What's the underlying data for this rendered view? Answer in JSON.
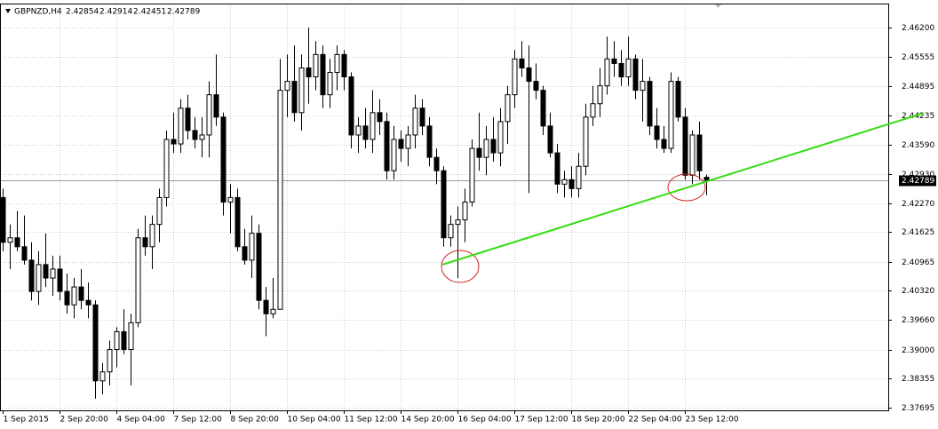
{
  "chart_data": {
    "type": "candlestick",
    "header": {
      "symbol": "GBPNZD,H4"
    },
    "open": [
      2.424,
      2.414,
      2.415,
      2.413,
      2.41,
      2.403,
      2.409,
      2.406,
      2.408,
      2.403,
      2.4,
      2.404,
      2.401,
      2.4,
      2.383,
      2.385,
      2.39,
      2.394,
      2.39,
      2.396,
      2.415,
      2.413,
      2.418,
      2.424,
      2.437,
      2.436,
      2.444,
      2.439,
      2.437,
      2.438,
      2.447,
      2.442,
      2.423,
      2.424,
      2.413,
      2.41,
      2.416,
      2.401,
      2.398,
      2.399,
      2.448,
      2.45,
      2.443,
      2.453,
      2.451,
      2.456,
      2.447,
      2.452,
      2.456,
      2.451,
      2.438,
      2.44,
      2.437,
      2.443,
      2.441,
      2.43,
      2.437,
      2.435,
      2.438,
      2.444,
      2.44,
      2.433,
      2.43,
      2.415,
      2.418,
      2.419,
      2.423,
      2.435,
      2.433,
      2.437,
      2.434,
      2.441,
      2.447,
      2.455,
      2.453,
      2.45,
      2.448,
      2.44,
      2.434,
      2.427,
      2.428,
      2.426,
      2.431,
      2.442,
      2.445,
      2.449,
      2.455,
      2.454,
      2.451,
      2.455,
      2.448,
      2.45,
      2.44,
      2.437,
      2.435,
      2.45,
      2.442,
      2.429,
      2.438,
      2.42854
    ],
    "high": [
      2.426,
      2.418,
      2.421,
      2.42,
      2.414,
      2.412,
      2.416,
      2.411,
      2.411,
      2.407,
      2.406,
      2.408,
      2.405,
      2.401,
      2.387,
      2.392,
      2.395,
      2.399,
      2.398,
      2.417,
      2.42,
      2.42,
      2.426,
      2.439,
      2.443,
      2.446,
      2.447,
      2.442,
      2.442,
      2.45,
      2.456,
      2.443,
      2.427,
      2.426,
      2.417,
      2.42,
      2.418,
      2.404,
      2.406,
      2.455,
      2.456,
      2.458,
      2.456,
      2.462,
      2.459,
      2.458,
      2.455,
      2.458,
      2.457,
      2.452,
      2.442,
      2.444,
      2.448,
      2.446,
      2.443,
      2.44,
      2.439,
      2.44,
      2.447,
      2.446,
      2.442,
      2.435,
      2.431,
      2.42,
      2.422,
      2.426,
      2.437,
      2.443,
      2.44,
      2.442,
      2.444,
      2.449,
      2.457,
      2.459,
      2.458,
      2.454,
      2.449,
      2.443,
      2.436,
      2.43,
      2.431,
      2.434,
      2.445,
      2.449,
      2.453,
      2.46,
      2.459,
      2.457,
      2.46,
      2.456,
      2.455,
      2.451,
      2.444,
      2.44,
      2.452,
      2.451,
      2.444,
      2.439,
      2.441,
      2.42914
    ],
    "low": [
      2.412,
      2.408,
      2.412,
      2.409,
      2.401,
      2.4,
      2.404,
      2.402,
      2.401,
      2.398,
      2.397,
      2.399,
      2.397,
      2.379,
      2.38,
      2.382,
      2.386,
      2.389,
      2.382,
      2.395,
      2.411,
      2.408,
      2.414,
      2.422,
      2.434,
      2.434,
      2.437,
      2.435,
      2.433,
      2.433,
      2.44,
      2.42,
      2.416,
      2.412,
      2.409,
      2.406,
      2.399,
      2.393,
      2.397,
      2.399,
      2.442,
      2.441,
      2.439,
      2.445,
      2.448,
      2.444,
      2.444,
      2.448,
      2.448,
      2.435,
      2.434,
      2.435,
      2.434,
      2.438,
      2.428,
      2.428,
      2.432,
      2.431,
      2.435,
      2.438,
      2.431,
      2.427,
      2.413,
      2.413,
      2.406,
      2.414,
      2.422,
      2.43,
      2.429,
      2.432,
      2.431,
      2.436,
      2.444,
      2.451,
      2.425,
      2.446,
      2.438,
      2.433,
      2.425,
      2.424,
      2.424,
      2.424,
      2.429,
      2.44,
      2.442,
      2.447,
      2.451,
      2.449,
      2.449,
      2.446,
      2.441,
      2.438,
      2.435,
      2.434,
      2.434,
      2.441,
      2.428,
      2.427,
      2.428,
      2.42451
    ],
    "close": [
      2.414,
      2.415,
      2.413,
      2.41,
      2.403,
      2.409,
      2.406,
      2.408,
      2.403,
      2.4,
      2.404,
      2.401,
      2.4,
      2.383,
      2.385,
      2.39,
      2.394,
      2.39,
      2.396,
      2.415,
      2.413,
      2.418,
      2.424,
      2.437,
      2.436,
      2.444,
      2.439,
      2.437,
      2.438,
      2.447,
      2.442,
      2.423,
      2.424,
      2.413,
      2.41,
      2.416,
      2.401,
      2.398,
      2.399,
      2.448,
      2.45,
      2.443,
      2.453,
      2.451,
      2.456,
      2.447,
      2.452,
      2.456,
      2.451,
      2.438,
      2.44,
      2.437,
      2.443,
      2.441,
      2.43,
      2.437,
      2.435,
      2.438,
      2.444,
      2.44,
      2.433,
      2.43,
      2.415,
      2.418,
      2.419,
      2.423,
      2.435,
      2.433,
      2.437,
      2.434,
      2.441,
      2.447,
      2.455,
      2.453,
      2.45,
      2.448,
      2.44,
      2.434,
      2.427,
      2.428,
      2.426,
      2.431,
      2.442,
      2.445,
      2.449,
      2.455,
      2.454,
      2.451,
      2.455,
      2.448,
      2.45,
      2.44,
      2.437,
      2.435,
      2.45,
      2.442,
      2.429,
      2.438,
      2.43,
      2.42789
    ],
    "bull_color": "#ffffff",
    "bear_color": "#000000",
    "outline_color": "#000000",
    "trendline": {
      "x": [
        61.9,
        129.6
      ],
      "y": [
        2.409,
        2.4429
      ],
      "color": "#33dd11"
    },
    "xlim": [
      -0.375,
      124.625
    ],
    "xticks": [
      {
        "value": 0,
        "label": "1 Sep 2015"
      },
      {
        "value": 8,
        "label": "2 Sep 20:00"
      },
      {
        "value": 16,
        "label": "4 Sep 04:00"
      },
      {
        "value": 24,
        "label": "7 Sep 12:00"
      },
      {
        "value": 32,
        "label": "8 Sep 20:00"
      },
      {
        "value": 40,
        "label": "10 Sep 04:00"
      },
      {
        "value": 48,
        "label": "11 Sep 12:00"
      },
      {
        "value": 56,
        "label": "14 Sep 20:00"
      },
      {
        "value": 64,
        "label": "16 Sep 04:00"
      },
      {
        "value": 72,
        "label": "17 Sep 12:00"
      },
      {
        "value": 80,
        "label": "18 Sep 20:00"
      },
      {
        "value": 88,
        "label": "22 Sep 04:00"
      },
      {
        "value": 96,
        "label": "23 Sep 12:00"
      }
    ],
    "ylim": [
      2.3764,
      2.4674
    ],
    "yticks": [
      {
        "value": 2.462,
        "label": "2.46200"
      },
      2.45555,
      2.44895,
      2.44235,
      {
        "value": 2.4359,
        "label": "2.43590"
      },
      {
        "value": 2.4293,
        "label": "2.42930"
      },
      {
        "value": 2.4227,
        "label": "2.42270"
      },
      2.41625,
      2.40965,
      {
        "value": 2.4032,
        "label": "2.40320"
      },
      {
        "value": 2.3966,
        "label": "2.39660"
      },
      {
        "value": 2.39,
        "label": "2.39000"
      },
      2.38355,
      2.37695
    ],
    "grid": true
  }
}
